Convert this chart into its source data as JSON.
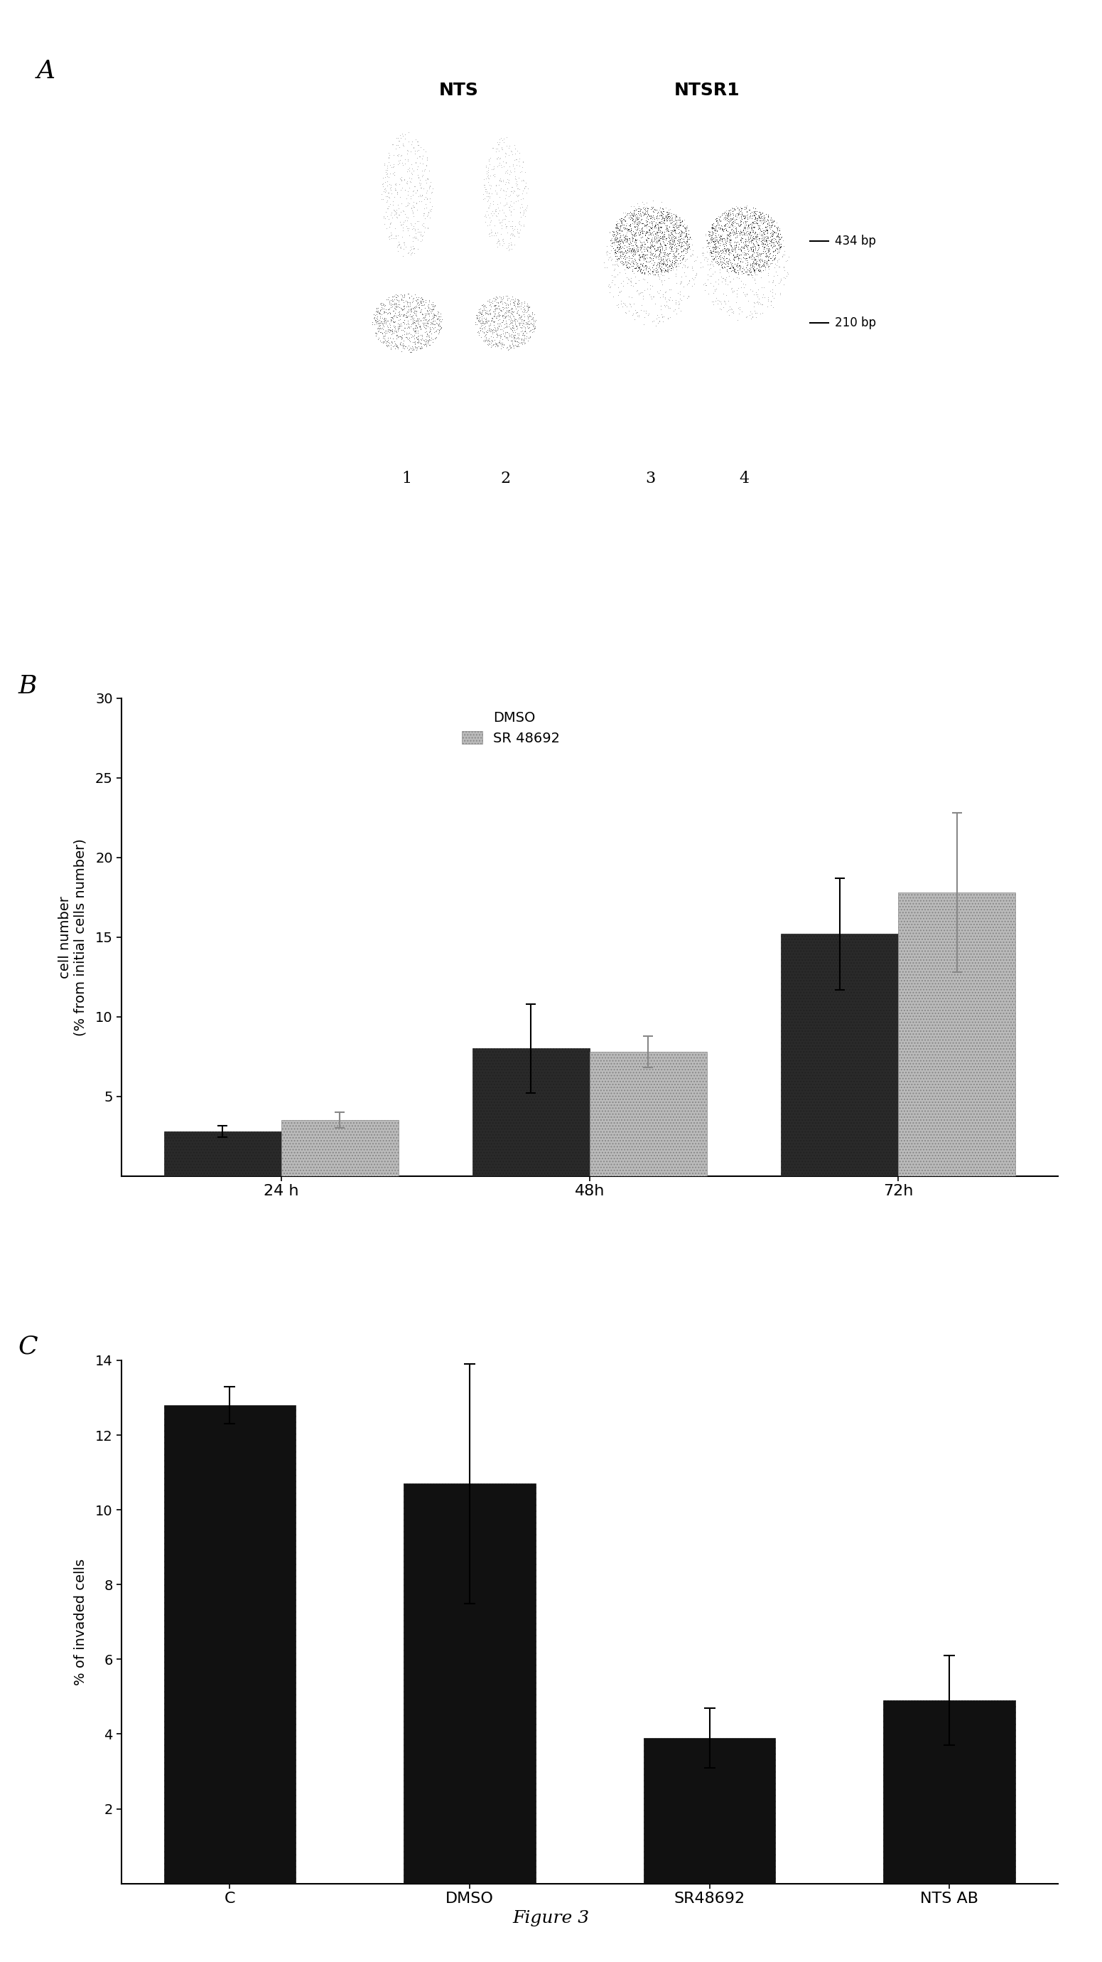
{
  "panel_A": {
    "label": "A",
    "nts_label": "NTS",
    "ntsr1_label": "NTSR1",
    "band_label_top": "434 bp",
    "band_label_bottom": "210 bp",
    "lane_labels": [
      "1",
      "2",
      "3",
      "4"
    ]
  },
  "panel_B": {
    "label": "B",
    "categories": [
      "24 h",
      "48h",
      "72h"
    ],
    "dmso_values": [
      2.8,
      8.0,
      15.2
    ],
    "sr_values": [
      3.5,
      7.8,
      17.8
    ],
    "dmso_errors": [
      0.35,
      2.8,
      3.5
    ],
    "sr_errors": [
      0.5,
      1.0,
      5.0
    ],
    "dmso_color": "#2a2a2a",
    "sr_color": "#bbbbbb",
    "ylabel": "cell number\n(% from initial cells number)",
    "ylim": [
      0,
      30
    ],
    "yticks": [
      5,
      10,
      15,
      20,
      25,
      30
    ],
    "legend_dmso": "DMSO",
    "legend_sr": "SR 48692",
    "bar_width": 0.38
  },
  "panel_C": {
    "label": "C",
    "categories": [
      "C",
      "DMSO",
      "SR48692",
      "NTS AB"
    ],
    "values": [
      12.8,
      10.7,
      3.9,
      4.9
    ],
    "errors": [
      0.5,
      3.2,
      0.8,
      1.2
    ],
    "bar_color": "#111111",
    "ylabel": "% of invaded cells",
    "ylim": [
      0,
      14
    ],
    "yticks": [
      2,
      4,
      6,
      8,
      10,
      12,
      14
    ]
  },
  "figure_label": "Figure 3",
  "bg_color": "#ffffff"
}
